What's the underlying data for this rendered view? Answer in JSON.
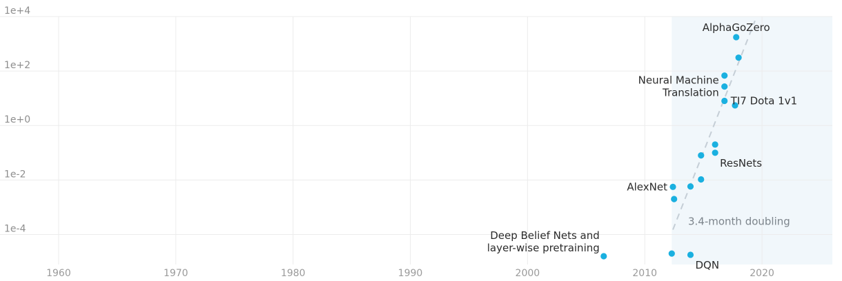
{
  "chart_data": {
    "type": "scatter",
    "x_scale": "linear",
    "y_scale": "log",
    "xlim": [
      1955,
      2026
    ],
    "ylim_log10": [
      -5.1,
      4
    ],
    "x_ticks": [
      {
        "value": 1960,
        "label": "1960"
      },
      {
        "value": 1970,
        "label": "1970"
      },
      {
        "value": 1980,
        "label": "1980"
      },
      {
        "value": 1990,
        "label": "1990"
      },
      {
        "value": 2000,
        "label": "2000"
      },
      {
        "value": 2010,
        "label": "2010"
      },
      {
        "value": 2020,
        "label": "2020"
      }
    ],
    "y_ticks": [
      {
        "value": 10000,
        "label": "1e+4"
      },
      {
        "value": 100,
        "label": "1e+2"
      },
      {
        "value": 1,
        "label": "1e+0"
      },
      {
        "value": 0.01,
        "label": "1e-2"
      },
      {
        "value": 0.0001,
        "label": "1e-4"
      }
    ],
    "grid": true,
    "shaded_region": {
      "x_start": 2012.3,
      "x_end": 2026
    },
    "trend": {
      "label": "3.4-month doubling",
      "start": {
        "x": 2012.4,
        "y": 0.00015
      },
      "end": {
        "x": 2019.4,
        "y": 7000
      }
    },
    "points": [
      {
        "x": 2006.5,
        "y": 1.6e-05,
        "label": "Deep Belief Nets and\nlayer-wise pretraining",
        "label_pos": "above-left"
      },
      {
        "x": 2012.3,
        "y": 2e-05,
        "label": ""
      },
      {
        "x": 2013.9,
        "y": 1.8e-05,
        "label": "DQN",
        "label_pos": "below-right"
      },
      {
        "x": 2012.4,
        "y": 0.0056,
        "label": "AlexNet",
        "label_pos": "left"
      },
      {
        "x": 2012.5,
        "y": 0.002,
        "label": ""
      },
      {
        "x": 2013.9,
        "y": 0.0058,
        "label": ""
      },
      {
        "x": 2014.8,
        "y": 0.0105,
        "label": ""
      },
      {
        "x": 2014.8,
        "y": 0.08,
        "label": ""
      },
      {
        "x": 2016.0,
        "y": 0.1,
        "label": "ResNets",
        "label_pos": "below-right"
      },
      {
        "x": 2016.0,
        "y": 0.2,
        "label": ""
      },
      {
        "x": 2016.8,
        "y": 8,
        "label": "TI7 Dota 1v1",
        "label_pos": "right"
      },
      {
        "x": 2017.7,
        "y": 5.5,
        "label": ""
      },
      {
        "x": 2016.8,
        "y": 27,
        "label": "Neural Machine\nTranslation",
        "label_pos": "left"
      },
      {
        "x": 2016.8,
        "y": 68,
        "label": ""
      },
      {
        "x": 2018.0,
        "y": 310,
        "label": ""
      },
      {
        "x": 2017.8,
        "y": 1750,
        "label": "AlphaGoZero",
        "label_pos": "above"
      }
    ]
  }
}
